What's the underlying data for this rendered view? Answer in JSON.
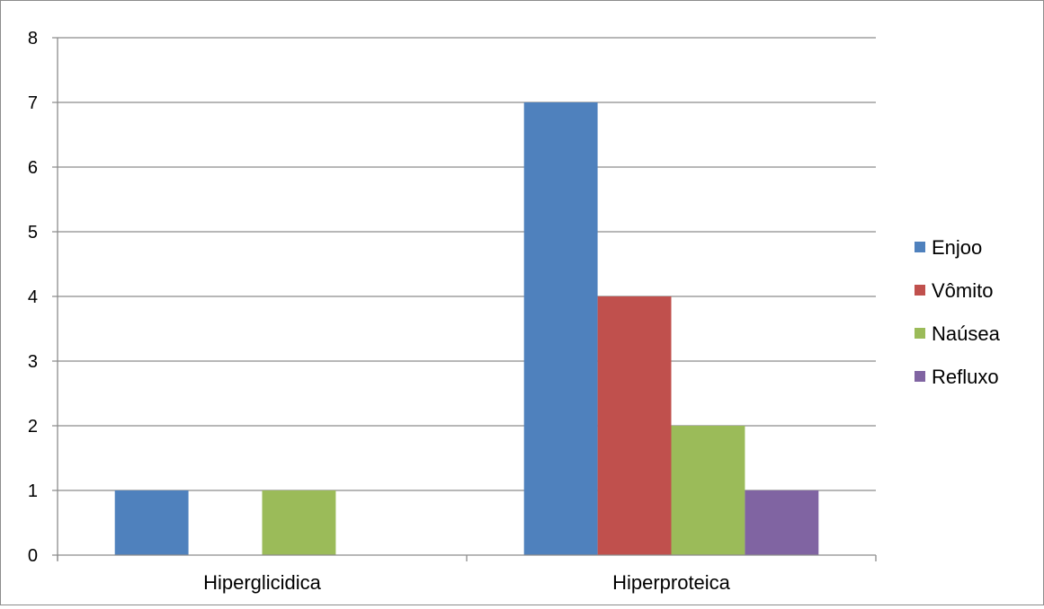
{
  "chart_data": {
    "type": "bar",
    "title": "",
    "xlabel": "",
    "ylabel": "",
    "categories": [
      "Hiperglicidica",
      "Hiperproteica"
    ],
    "series": [
      {
        "name": "Enjoo",
        "color": "#4f81bd",
        "values": [
          1,
          7
        ]
      },
      {
        "name": "Vômito",
        "color": "#c0504d",
        "values": [
          0,
          4
        ]
      },
      {
        "name": "Naúsea",
        "color": "#9bbb59",
        "values": [
          1,
          2
        ]
      },
      {
        "name": "Refluxo",
        "color": "#8064a2",
        "values": [
          0,
          1
        ]
      }
    ],
    "ylim": [
      0,
      8
    ],
    "yticks": [
      0,
      1,
      2,
      3,
      4,
      5,
      6,
      7,
      8
    ],
    "grid": true,
    "legend_position": "right"
  }
}
